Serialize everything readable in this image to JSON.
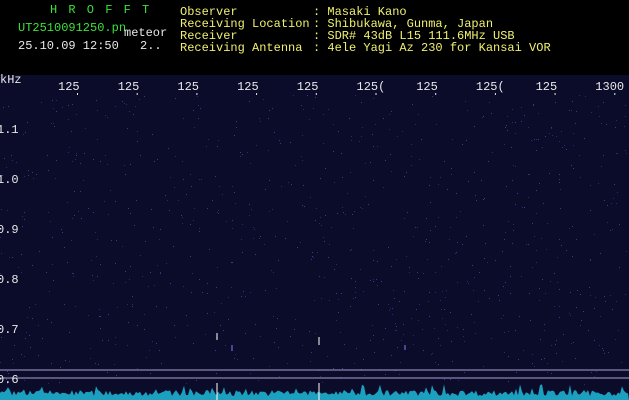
{
  "header": {
    "app": "H R O F F T",
    "file": "UT2510091250.pn",
    "mode": "meteor",
    "datetime": "25.10.09 12:50",
    "extra": "2..",
    "fields": [
      {
        "label": "Observer",
        "value": ": Masaki Kano"
      },
      {
        "label": "Receiving Location",
        "value": ": Shibukawa, Gunma, Japan"
      },
      {
        "label": "Receiver",
        "value": ": SDR# 43dB L15 111.6MHz USB"
      },
      {
        "label": "Receiving Antenna",
        "value": ": 4ele Yagi Az 230 for Kansai VOR"
      }
    ]
  },
  "axes": {
    "x_unit": "kHz",
    "x_labels": [
      "125",
      "125",
      "125",
      "125",
      "125",
      "125(",
      "125",
      "125(",
      "125",
      "1300"
    ],
    "y_labels": [
      "1.1",
      "1.0",
      "0.9",
      "0.8",
      "0.7",
      "0.6"
    ]
  }
}
